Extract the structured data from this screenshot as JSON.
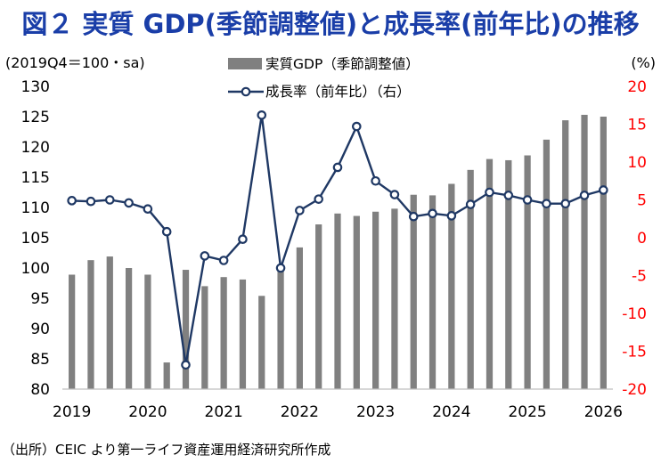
{
  "chart_data": {
    "type": "bar+line",
    "title": "図２ 実質 GDP(季節調整値)と成長率(前年比)の推移",
    "left_axis_label": "(2019Q4＝100・sa)",
    "right_axis_label": "(%)",
    "left_ylim": [
      80,
      130
    ],
    "left_ticks": [
      "130",
      "125",
      "120",
      "115",
      "110",
      "105",
      "100",
      "95",
      "90",
      "85",
      "80"
    ],
    "right_ylim": [
      -20,
      20
    ],
    "right_ticks": [
      "20",
      "15",
      "10",
      "5",
      "0",
      "-5",
      "-10",
      "-15",
      "-20"
    ],
    "x_tick_labels": [
      "2019",
      "2020",
      "2021",
      "2022",
      "2023",
      "2024",
      "2025",
      "2026"
    ],
    "series": [
      {
        "name": "実質GDP（季節調整値）",
        "kind": "bar",
        "axis": "left",
        "color": "#808080",
        "values": [
          98.9,
          101.3,
          101.9,
          100.0,
          98.9,
          84.4,
          99.7,
          97.0,
          98.5,
          98.1,
          95.4,
          100.2,
          103.4,
          107.2,
          109.0,
          108.6,
          109.3,
          109.8,
          112.1,
          112.0,
          113.9,
          116.2,
          118.0,
          117.8,
          118.6,
          121.2,
          124.4,
          125.3,
          125.0
        ]
      },
      {
        "name": "成長率（前年比）（右）",
        "kind": "line",
        "axis": "right",
        "color": "#1f3864",
        "values": [
          4.9,
          4.8,
          5.0,
          4.6,
          3.8,
          0.8,
          -16.8,
          -2.4,
          -3.0,
          -0.2,
          16.2,
          -4.0,
          3.6,
          5.1,
          9.3,
          14.7,
          7.5,
          5.7,
          2.8,
          3.2,
          2.9,
          4.4,
          6.0,
          5.6,
          5.0,
          4.5,
          4.5,
          5.6,
          6.3
        ]
      }
    ],
    "colors": {
      "bar": "#808080",
      "line": "#1f3864",
      "right_axis_text": "#ff0000",
      "title": "#1a3ea8"
    }
  },
  "source": "（出所）CEIC より第一ライフ資産運用経済研究所作成"
}
